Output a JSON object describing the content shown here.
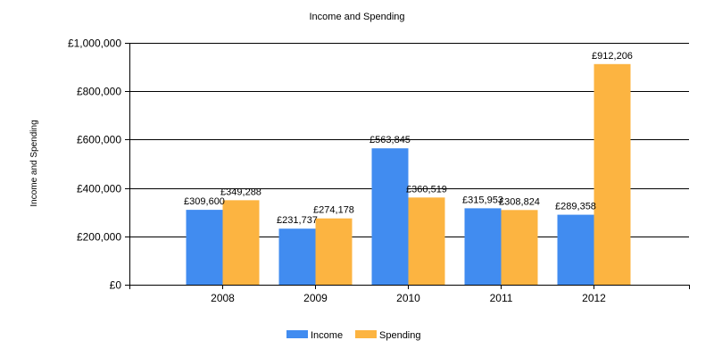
{
  "chart_data": {
    "type": "bar",
    "title": "Income and Spending",
    "xlabel": "",
    "ylabel": "Income and Spending",
    "categories": [
      "2008",
      "2009",
      "2010",
      "2011",
      "2012"
    ],
    "series": [
      {
        "name": "Income",
        "color": "#418CF0",
        "values": [
          309600,
          231737,
          563845,
          315953,
          289358
        ],
        "labels": [
          "£309,600",
          "£231,737",
          "£563,845",
          "£315,953",
          "£289,358"
        ]
      },
      {
        "name": "Spending",
        "color": "#FCB441",
        "values": [
          349288,
          274178,
          360519,
          308824,
          912206
        ],
        "labels": [
          "£349,288",
          "£274,178",
          "£360,519",
          "£308,824",
          "£912,206"
        ]
      }
    ],
    "ylim": [
      0,
      1000000
    ],
    "yticks": [
      0,
      200000,
      400000,
      600000,
      800000,
      1000000
    ],
    "ytick_labels": [
      "£0",
      "£200,000",
      "£400,000",
      "£600,000",
      "£800,000",
      "£1,000,000"
    ],
    "grid": true,
    "legend_position": "bottom"
  }
}
